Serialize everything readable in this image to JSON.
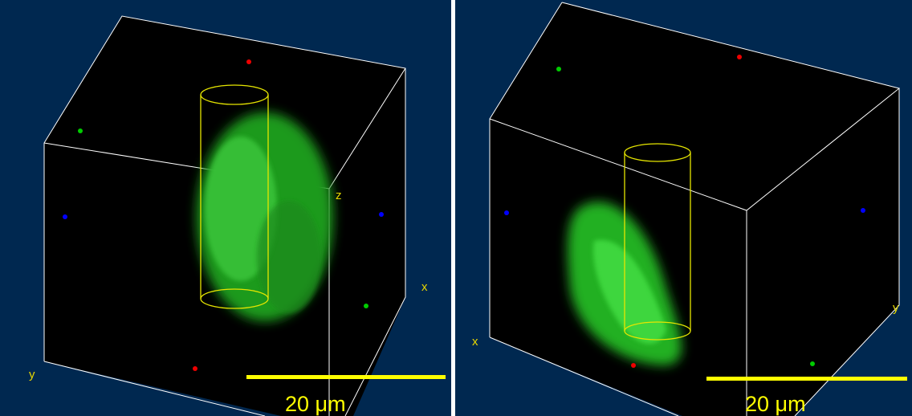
{
  "left_panel": {
    "axis_labels": [
      "z",
      "x",
      "y"
    ],
    "scale_bar": "20 μm"
  },
  "right_panel": {
    "axis_labels": [
      "x",
      "y"
    ],
    "scale_bar": "20 μm"
  }
}
